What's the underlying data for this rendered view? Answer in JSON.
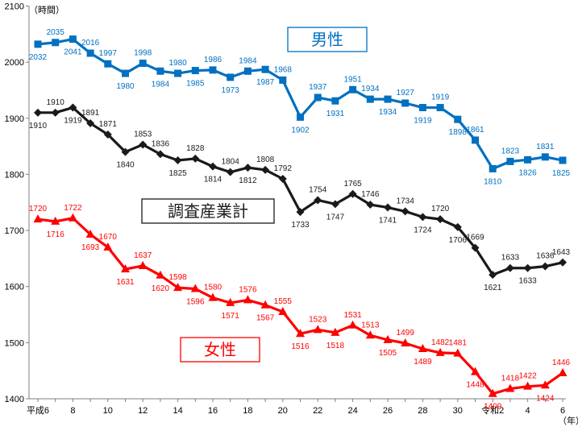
{
  "chart_data": {
    "type": "line",
    "ylabel": "（時間）",
    "xunit": "（年）",
    "ylim": [
      1400,
      2100
    ],
    "yticks": [
      1400,
      1500,
      1600,
      1700,
      1800,
      1900,
      2000,
      2100
    ],
    "x": [
      "平成6",
      "7",
      "8",
      "9",
      "10",
      "11",
      "12",
      "13",
      "14",
      "15",
      "16",
      "17",
      "18",
      "19",
      "20",
      "21",
      "22",
      "23",
      "24",
      "25",
      "26",
      "27",
      "28",
      "29",
      "30",
      "令和元",
      "令和2",
      "3",
      "4",
      "5",
      "6"
    ],
    "xtick_labels": [
      {
        "i": 0,
        "text": "平成6"
      },
      {
        "i": 2,
        "text": "8"
      },
      {
        "i": 4,
        "text": "10"
      },
      {
        "i": 6,
        "text": "12"
      },
      {
        "i": 8,
        "text": "14"
      },
      {
        "i": 10,
        "text": "16"
      },
      {
        "i": 12,
        "text": "18"
      },
      {
        "i": 14,
        "text": "20"
      },
      {
        "i": 16,
        "text": "22"
      },
      {
        "i": 18,
        "text": "24"
      },
      {
        "i": 20,
        "text": "26"
      },
      {
        "i": 22,
        "text": "28"
      },
      {
        "i": 24,
        "text": "30"
      },
      {
        "i": 26,
        "text": "令和2"
      },
      {
        "i": 28,
        "text": "4"
      },
      {
        "i": 30,
        "text": "6"
      }
    ],
    "grid": false,
    "series": [
      {
        "name": "男性",
        "color": "#0070c0",
        "marker": "square",
        "values": [
          2032,
          2035,
          2041,
          2016,
          1997,
          1980,
          1998,
          1984,
          1980,
          1985,
          1986,
          1973,
          1984,
          1987,
          1968,
          1902,
          1937,
          1931,
          1951,
          1934,
          1934,
          1927,
          1919,
          1919,
          1898,
          1861,
          1810,
          1823,
          1826,
          1831,
          1825
        ],
        "label_pos": [
          "b",
          "a",
          "b",
          "a",
          "a",
          "b",
          "a",
          "b",
          "a",
          "b",
          "a",
          "b",
          "a",
          "b",
          "a",
          "b",
          "a",
          "b",
          "a",
          "a",
          "b",
          "a",
          "b",
          "a",
          "b",
          "a",
          "b",
          "a",
          "b",
          "a",
          "b"
        ]
      },
      {
        "name": "調査産業計",
        "color": "#1a1a1a",
        "marker": "diamond",
        "values": [
          1910,
          1910,
          1919,
          1891,
          1871,
          1840,
          1853,
          1836,
          1825,
          1828,
          1814,
          1804,
          1812,
          1808,
          1792,
          1733,
          1754,
          1747,
          1765,
          1746,
          1741,
          1734,
          1724,
          1720,
          1706,
          1669,
          1621,
          1633,
          1633,
          1636,
          1643
        ],
        "label_pos": [
          "b",
          "a",
          "b",
          "a",
          "a",
          "b",
          "a",
          "a",
          "b",
          "a",
          "b",
          "a",
          "b",
          "a",
          "a",
          "b",
          "a",
          "b",
          "a",
          "a",
          "b",
          "a",
          "b",
          "a",
          "b",
          "a",
          "b",
          "a",
          "b",
          "a",
          "a"
        ]
      },
      {
        "name": "女性",
        "color": "#ff0000",
        "marker": "triangle",
        "values": [
          1720,
          1716,
          1722,
          1693,
          1670,
          1631,
          1637,
          1620,
          1598,
          1596,
          1580,
          1571,
          1576,
          1567,
          1555,
          1516,
          1523,
          1518,
          1531,
          1513,
          1505,
          1499,
          1489,
          1482,
          1481,
          1448,
          1409,
          1418,
          1422,
          1424,
          1446
        ],
        "label_pos": [
          "a",
          "b",
          "a",
          "b",
          "a",
          "b",
          "a",
          "b",
          "a",
          "b",
          "a",
          "b",
          "a",
          "b",
          "a",
          "b",
          "a",
          "b",
          "a",
          "a",
          "b",
          "a",
          "b",
          "a",
          "a",
          "b",
          "b",
          "a",
          "a",
          "b",
          "a"
        ]
      }
    ]
  }
}
